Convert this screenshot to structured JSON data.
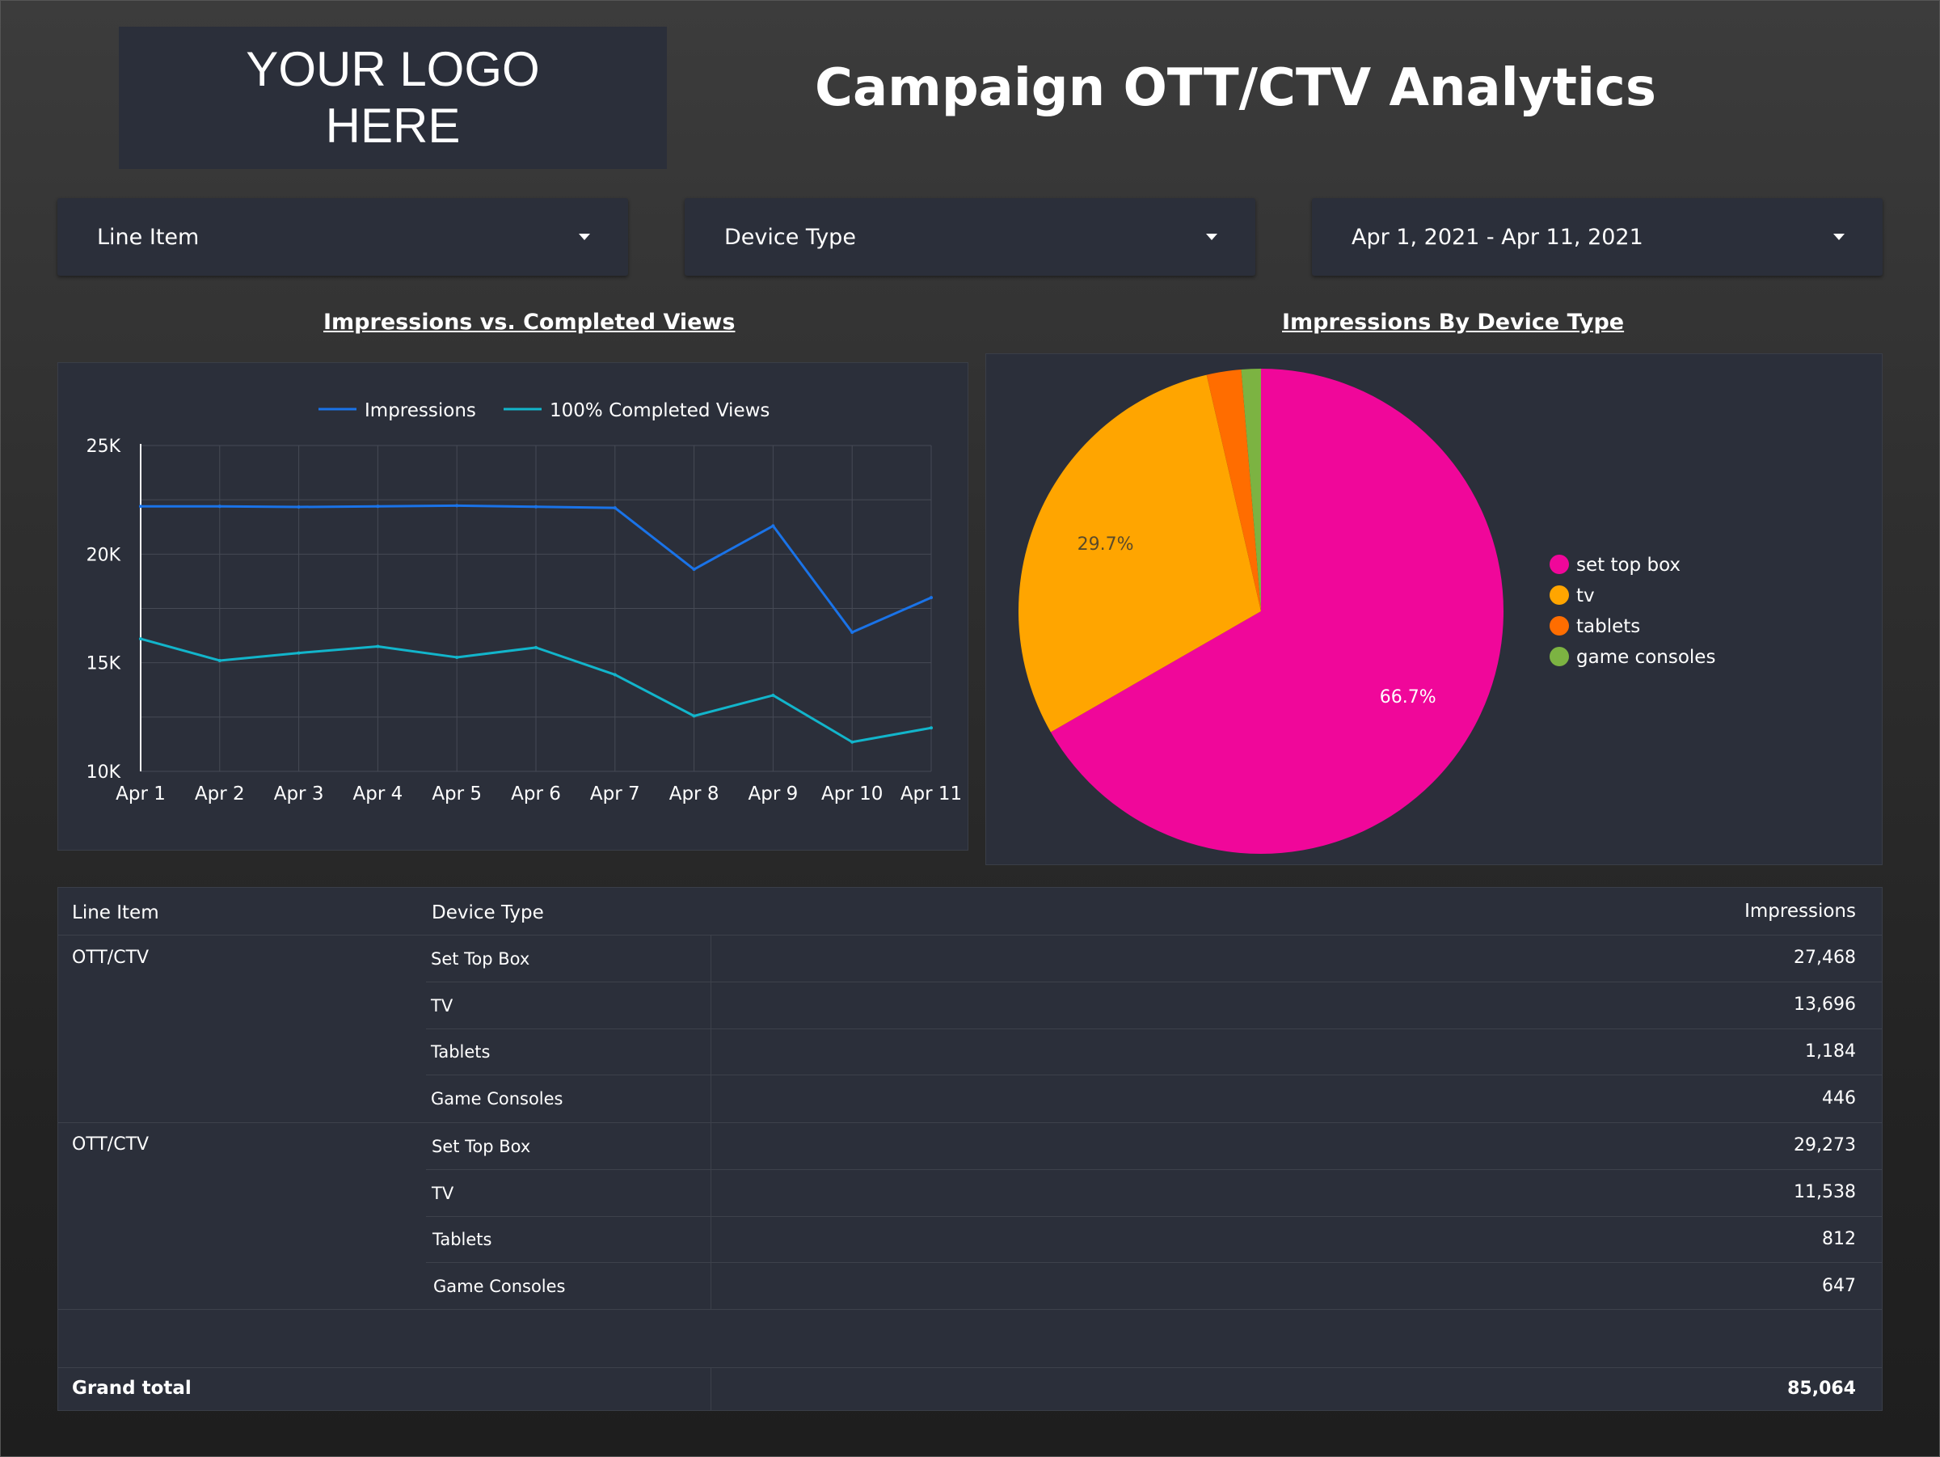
{
  "header": {
    "logo_line1": "YOUR LOGO",
    "logo_line2": "HERE",
    "title": "Campaign OTT/CTV Analytics"
  },
  "filters": [
    {
      "label": "Line Item"
    },
    {
      "label": "Device Type"
    },
    {
      "label": "Apr 1, 2021 - Apr 11, 2021"
    }
  ],
  "line_section": {
    "title": "Impressions vs. Completed Views"
  },
  "pie_section": {
    "title": "Impressions By Device Type"
  },
  "colors": {
    "impressions": "#1a73e8",
    "completed": "#12b5cb",
    "set_top_box": "#f0079a",
    "tv": "#ffa500",
    "tablets": "#ff6d00",
    "game_consoles": "#7cb342"
  },
  "chart_data": [
    {
      "type": "line",
      "title": "Impressions vs. Completed Views",
      "x": [
        "Apr 1",
        "Apr 2",
        "Apr 3",
        "Apr 4",
        "Apr 5",
        "Apr 6",
        "Apr 7",
        "Apr 8",
        "Apr 9",
        "Apr 10",
        "Apr 11"
      ],
      "series": [
        {
          "name": "Impressions",
          "values": [
            22200,
            22200,
            22170,
            22200,
            22230,
            22180,
            22130,
            19300,
            21300,
            16400,
            18000
          ]
        },
        {
          "name": "100% Completed Views",
          "values": [
            16100,
            15100,
            15450,
            15750,
            15250,
            15700,
            14450,
            12550,
            13500,
            11350,
            12000
          ]
        }
      ],
      "ylim": [
        10000,
        25000
      ],
      "yticks": [
        "25K",
        "20K",
        "15K",
        "10K"
      ],
      "ytick_values": [
        25000,
        20000,
        15000,
        10000
      ],
      "legend": "top-center"
    },
    {
      "type": "pie",
      "title": "Impressions By Device Type",
      "labels": [
        "set top box",
        "tv",
        "tablets",
        "game consoles"
      ],
      "values": [
        66.7,
        29.7,
        2.3,
        1.3
      ],
      "data_labels": [
        "66.7%",
        "29.7%",
        "",
        ""
      ],
      "legend": "right"
    }
  ],
  "table": {
    "headers": {
      "line_item": "Line Item",
      "device_type": "Device Type",
      "impressions": "Impressions"
    },
    "groups": [
      {
        "line_item": "OTT/CTV",
        "rows": [
          {
            "device": "Set Top Box",
            "impressions": "27,468"
          },
          {
            "device": "TV",
            "impressions": "13,696"
          },
          {
            "device": "Tablets",
            "impressions": "1,184"
          },
          {
            "device": "Game Consoles",
            "impressions": "446"
          }
        ]
      },
      {
        "line_item": "OTT/CTV",
        "rows": [
          {
            "device": "Set Top Box",
            "impressions": "29,273"
          },
          {
            "device": "TV",
            "impressions": "11,538"
          },
          {
            "device": "Tablets",
            "impressions": "812"
          },
          {
            "device": "Game Consoles",
            "impressions": "647"
          }
        ]
      }
    ],
    "grand_total_label": "Grand total",
    "grand_total_value": "85,064"
  }
}
